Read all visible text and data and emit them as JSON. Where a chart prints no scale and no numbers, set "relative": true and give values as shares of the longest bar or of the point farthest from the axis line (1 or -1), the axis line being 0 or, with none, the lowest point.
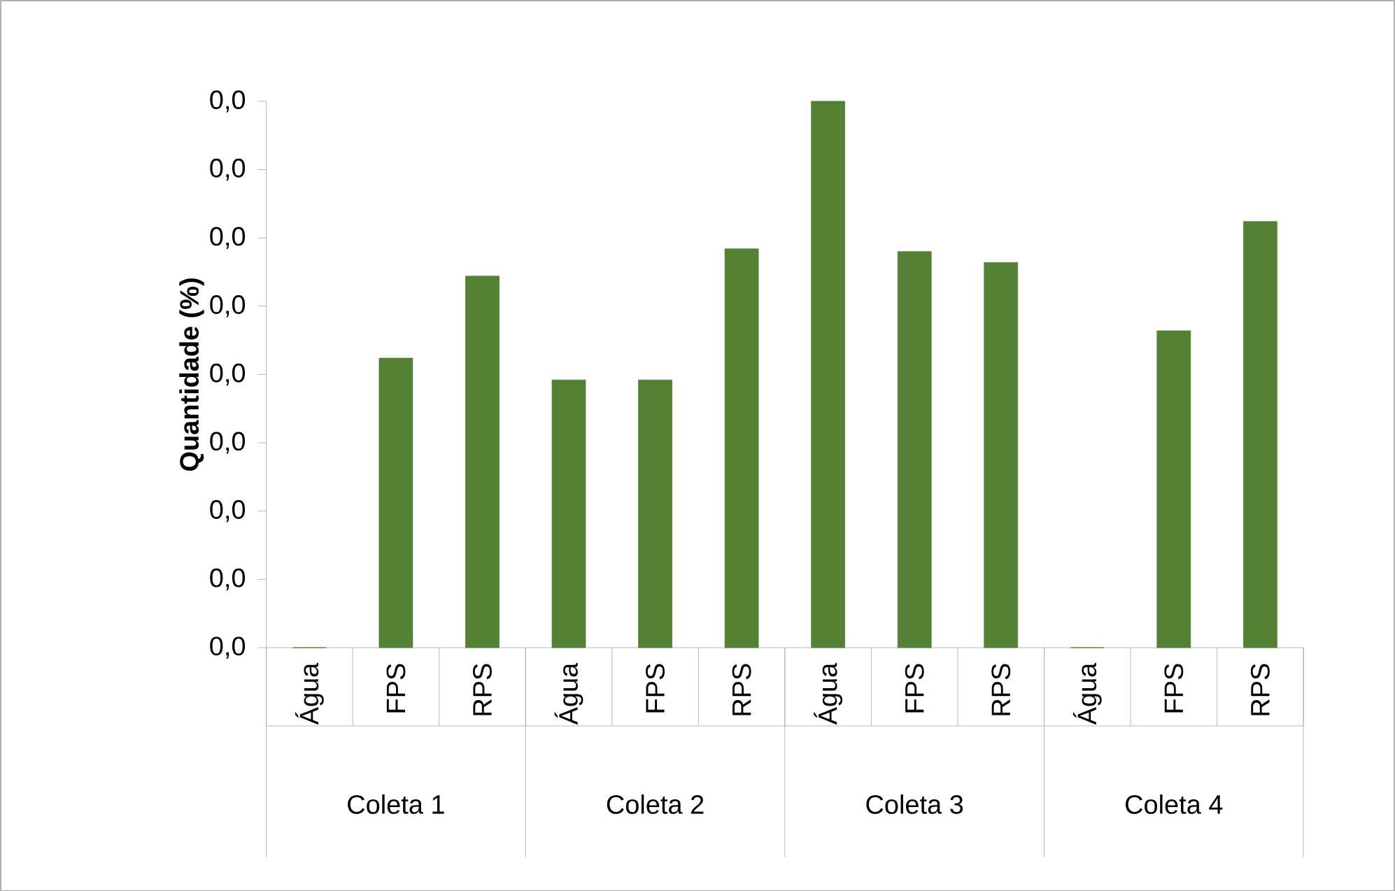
{
  "chart_data": {
    "type": "bar",
    "ylabel": "Quantidade (%)",
    "relative": true,
    "categories": [
      "Água",
      "FPS",
      "RPS",
      "Água",
      "FPS",
      "RPS",
      "Água",
      "FPS",
      "RPS",
      "Água",
      "FPS",
      "RPS"
    ],
    "values": [
      0,
      0.53,
      0.68,
      0.49,
      0.49,
      0.73,
      1,
      0.725,
      0.705,
      0,
      0.58,
      0.78
    ],
    "color": "#548235",
    "annotations": [
      "Coleta 1",
      "Coleta 2",
      "Coleta 3",
      "Coleta 4",
      "0,0",
      "0,0",
      "0,0",
      "0,0",
      "0,0",
      "0,0",
      "0,0",
      "0,0",
      "0,0"
    ]
  }
}
